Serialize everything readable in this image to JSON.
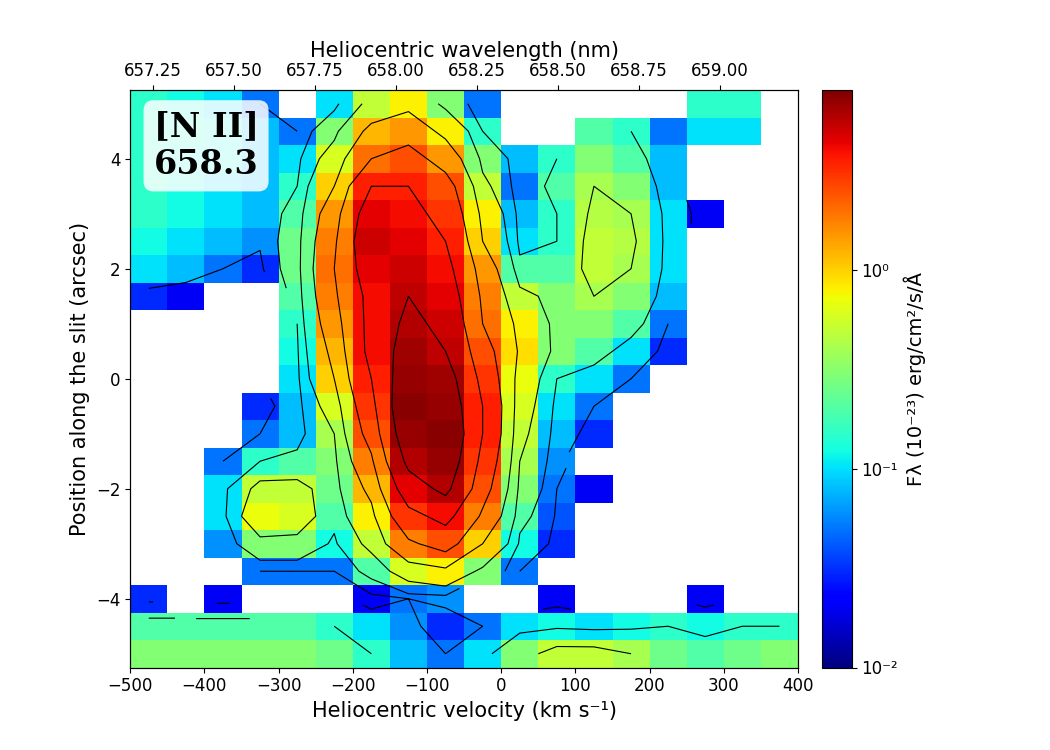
{
  "chart_data": {
    "type": "heatmap",
    "annotation": "[N II]\n658.3",
    "x_label": "Heliocentric velocity (km s⁻¹)",
    "y_label": "Position along the slit (arcsec)",
    "x2_label": "Heliocentric wavelength (nm)",
    "color": "jet",
    "grid": true,
    "xlim": [
      -500,
      400
    ],
    "xticks": [
      {
        "value": -500,
        "label": "−500"
      },
      {
        "value": -400,
        "label": "−400"
      },
      {
        "value": -300,
        "label": "−300"
      },
      {
        "value": -200,
        "label": "−200"
      },
      {
        "value": -100,
        "label": "−100"
      },
      0,
      100,
      200,
      300,
      400
    ],
    "ylim": [
      -5.25,
      5.25
    ],
    "yticks": [
      {
        "value": -4,
        "label": "−4"
      },
      {
        "value": -2,
        "label": "−2"
      },
      0,
      2,
      4
    ],
    "x2lim": [
      657.18,
      659.24
    ],
    "x2ticks": [
      657.25,
      {
        "value": 657.5,
        "label": "657.50"
      },
      657.75,
      {
        "value": 658.0,
        "label": "658.00"
      },
      658.25,
      {
        "value": 658.5,
        "label": "658.50"
      },
      658.75,
      {
        "value": 659.0,
        "label": "659.00"
      }
    ],
    "colorbar": {
      "label": "Fλ (10⁻²³) erg/cm²/s/Å",
      "range": [
        0.01,
        8
      ],
      "ticks": [
        {
          "value": 0.01,
          "label": "10⁻²"
        },
        {
          "value": 0.1,
          "label": "10⁻¹"
        },
        {
          "value": 1,
          "label": "10⁰"
        }
      ]
    },
    "contour_levels": [
      0.05,
      0.15,
      0.4,
      1,
      2,
      3.5,
      5.5
    ],
    "x": [
      -475,
      -425,
      -375,
      -325,
      -275,
      -225,
      -175,
      -125,
      -75,
      -25,
      25,
      75,
      125,
      175,
      225,
      275,
      325,
      375
    ],
    "y": [
      -5,
      -4.5,
      -4,
      -3.5,
      -3,
      -2.5,
      -2,
      -1.5,
      -1,
      -0.5,
      0,
      0.5,
      1,
      1.5,
      2,
      2.5,
      3,
      3.5,
      4,
      4.5,
      5
    ],
    "values": [
      [
        0.3,
        0.3,
        0.3,
        0.3,
        0.3,
        0.25,
        0.15,
        0.08,
        0.05,
        0.1,
        0.3,
        0.5,
        0.5,
        0.4,
        0.25,
        0.2,
        0.25,
        0.3
      ],
      [
        0.2,
        0.2,
        0.2,
        0.2,
        0.2,
        0.15,
        0.1,
        0.06,
        0.03,
        0.05,
        0.1,
        0.12,
        0.1,
        0.12,
        0.15,
        0.12,
        0.15,
        0.15
      ],
      [
        0.03,
        null,
        0.02,
        null,
        null,
        null,
        0.02,
        0.05,
        0.06,
        null,
        null,
        0.02,
        null,
        null,
        null,
        0.02,
        null,
        null
      ],
      [
        null,
        null,
        null,
        0.05,
        0.05,
        0.05,
        0.2,
        0.6,
        0.8,
        0.3,
        0.05,
        null,
        null,
        null,
        null,
        null,
        null,
        null
      ],
      [
        null,
        null,
        0.06,
        0.3,
        0.3,
        0.12,
        0.5,
        1.8,
        2.5,
        1.0,
        0.12,
        0.03,
        null,
        null,
        null,
        null,
        null,
        null
      ],
      [
        null,
        null,
        0.1,
        0.7,
        0.6,
        0.2,
        0.8,
        3.0,
        4.0,
        1.8,
        0.2,
        0.04,
        null,
        null,
        null,
        null,
        null,
        null
      ],
      [
        null,
        null,
        0.1,
        0.5,
        0.5,
        0.25,
        1.2,
        4.5,
        6.0,
        2.5,
        0.3,
        0.05,
        0.02,
        null,
        null,
        null,
        null,
        null
      ],
      [
        null,
        null,
        0.05,
        0.15,
        0.2,
        0.3,
        1.8,
        6.0,
        7.0,
        3.0,
        0.4,
        0.06,
        null,
        null,
        null,
        null,
        null,
        null
      ],
      [
        null,
        null,
        null,
        0.05,
        0.08,
        0.4,
        2.5,
        7.0,
        7.5,
        3.5,
        0.5,
        0.08,
        0.03,
        null,
        null,
        null,
        null,
        null
      ],
      [
        null,
        null,
        null,
        0.03,
        0.08,
        0.6,
        3.0,
        7.5,
        7.0,
        3.5,
        0.6,
        0.1,
        0.05,
        null,
        null,
        null,
        null,
        null
      ],
      [
        null,
        null,
        null,
        null,
        0.1,
        1.0,
        3.5,
        7.0,
        6.5,
        3.0,
        0.7,
        0.15,
        0.1,
        0.05,
        null,
        null,
        null,
        null
      ],
      [
        null,
        null,
        null,
        null,
        0.12,
        1.2,
        4.0,
        6.5,
        5.5,
        2.5,
        0.9,
        0.3,
        0.2,
        0.1,
        0.03,
        null,
        null,
        null
      ],
      [
        null,
        null,
        null,
        null,
        0.15,
        1.5,
        4.0,
        6.0,
        5.0,
        2.0,
        0.8,
        0.3,
        0.3,
        0.2,
        0.05,
        null,
        null,
        null
      ],
      [
        0.03,
        0.02,
        null,
        null,
        0.2,
        1.8,
        4.0,
        5.5,
        4.5,
        1.8,
        0.5,
        0.3,
        0.4,
        0.3,
        0.08,
        null,
        null,
        null
      ],
      [
        0.1,
        0.08,
        0.05,
        0.03,
        0.25,
        2.0,
        4.5,
        5.0,
        4.0,
        1.5,
        0.2,
        0.2,
        0.5,
        0.4,
        0.1,
        null,
        null,
        null
      ],
      [
        0.12,
        0.1,
        0.08,
        0.06,
        0.25,
        1.8,
        5.0,
        4.5,
        3.5,
        1.0,
        0.1,
        0.15,
        0.5,
        0.45,
        0.1,
        null,
        null,
        null
      ],
      [
        0.15,
        0.12,
        0.1,
        0.08,
        0.2,
        1.5,
        4.5,
        4.0,
        3.0,
        0.8,
        0.08,
        0.15,
        0.45,
        0.4,
        0.1,
        0.02,
        null,
        null
      ],
      [
        0.15,
        0.12,
        0.1,
        0.08,
        0.15,
        1.0,
        3.5,
        3.5,
        2.5,
        0.5,
        0.05,
        0.2,
        0.4,
        0.3,
        0.08,
        null,
        null,
        null
      ],
      [
        0.15,
        0.12,
        0.12,
        0.08,
        0.1,
        0.6,
        2.0,
        2.5,
        1.5,
        0.3,
        0.08,
        0.15,
        0.3,
        0.2,
        0.08,
        null,
        null,
        null
      ],
      [
        0.15,
        0.15,
        0.12,
        0.08,
        0.05,
        0.3,
        1.2,
        1.5,
        0.8,
        0.15,
        null,
        null,
        0.2,
        0.15,
        0.05,
        0.1,
        0.1,
        null
      ],
      [
        0.15,
        0.12,
        0.1,
        0.05,
        null,
        0.1,
        0.5,
        0.8,
        0.3,
        0.05,
        null,
        null,
        null,
        null,
        null,
        0.15,
        0.15,
        null
      ]
    ]
  }
}
